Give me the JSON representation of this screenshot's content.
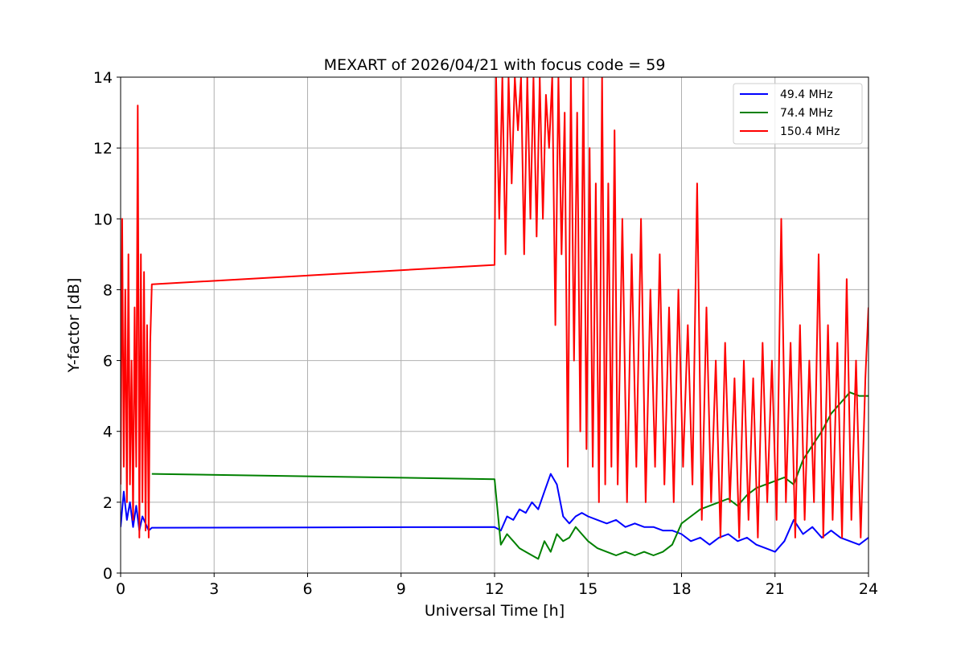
{
  "chart_data": {
    "type": "line",
    "title": "MEXART of 2026/04/21 with focus code = 59",
    "xlabel": "Universal Time [h]",
    "ylabel": "Y-factor [dB]",
    "xlim": [
      0,
      24
    ],
    "ylim": [
      0,
      14
    ],
    "xticks": [
      0,
      3,
      6,
      9,
      12,
      15,
      18,
      21,
      24
    ],
    "yticks": [
      0,
      2,
      4,
      6,
      8,
      10,
      12,
      14
    ],
    "grid": true,
    "legend_position": "top-right",
    "series": [
      {
        "name": "49.4 MHz",
        "color": "#0000ff",
        "x": [
          0.0,
          0.1,
          0.2,
          0.3,
          0.4,
          0.5,
          0.6,
          0.7,
          0.8,
          0.9,
          1.0,
          12.0,
          12.2,
          12.4,
          12.6,
          12.8,
          13.0,
          13.2,
          13.4,
          13.6,
          13.8,
          14.0,
          14.2,
          14.4,
          14.6,
          14.8,
          15.0,
          15.3,
          15.6,
          15.9,
          16.2,
          16.5,
          16.8,
          17.1,
          17.4,
          17.7,
          18.0,
          18.3,
          18.6,
          18.9,
          19.2,
          19.5,
          19.8,
          20.1,
          20.4,
          20.7,
          21.0,
          21.3,
          21.6,
          21.9,
          22.2,
          22.5,
          22.8,
          23.1,
          23.4,
          23.7,
          24.0
        ],
        "y": [
          1.3,
          2.3,
          1.5,
          2.0,
          1.3,
          1.9,
          1.2,
          1.6,
          1.4,
          1.2,
          1.28,
          1.3,
          1.2,
          1.6,
          1.5,
          1.8,
          1.7,
          2.0,
          1.8,
          2.3,
          2.8,
          2.5,
          1.6,
          1.4,
          1.6,
          1.7,
          1.6,
          1.5,
          1.4,
          1.5,
          1.3,
          1.4,
          1.3,
          1.3,
          1.2,
          1.2,
          1.1,
          0.9,
          1.0,
          0.8,
          1.0,
          1.1,
          0.9,
          1.0,
          0.8,
          0.7,
          0.6,
          0.9,
          1.5,
          1.1,
          1.3,
          1.0,
          1.2,
          1.0,
          0.9,
          0.8,
          1.0
        ]
      },
      {
        "name": "74.4 MHz",
        "color": "#008000",
        "x": [
          1.0,
          12.0,
          12.2,
          12.4,
          12.6,
          12.8,
          13.0,
          13.2,
          13.4,
          13.6,
          13.8,
          14.0,
          14.2,
          14.4,
          14.6,
          14.8,
          15.0,
          15.3,
          15.6,
          15.9,
          16.2,
          16.5,
          16.8,
          17.1,
          17.4,
          17.7,
          18.0,
          18.3,
          18.6,
          18.9,
          19.2,
          19.5,
          19.8,
          20.1,
          20.4,
          20.7,
          21.0,
          21.3,
          21.6,
          21.9,
          22.2,
          22.5,
          22.8,
          23.1,
          23.4,
          23.7,
          24.0
        ],
        "y": [
          2.8,
          2.65,
          0.8,
          1.1,
          0.9,
          0.7,
          0.6,
          0.5,
          0.4,
          0.9,
          0.6,
          1.1,
          0.9,
          1.0,
          1.3,
          1.1,
          0.9,
          0.7,
          0.6,
          0.5,
          0.6,
          0.5,
          0.6,
          0.5,
          0.6,
          0.8,
          1.4,
          1.6,
          1.8,
          1.9,
          2.0,
          2.1,
          1.9,
          2.2,
          2.4,
          2.5,
          2.6,
          2.7,
          2.5,
          3.2,
          3.6,
          4.0,
          4.5,
          4.8,
          5.1,
          5.0,
          5.0
        ]
      },
      {
        "name": "150.4 MHz",
        "color": "#ff0000",
        "x": [
          0.0,
          0.05,
          0.1,
          0.15,
          0.2,
          0.25,
          0.3,
          0.35,
          0.4,
          0.45,
          0.5,
          0.55,
          0.6,
          0.65,
          0.7,
          0.75,
          0.8,
          0.85,
          0.9,
          0.95,
          1.0,
          12.0,
          12.05,
          12.15,
          12.25,
          12.35,
          12.45,
          12.55,
          12.65,
          12.75,
          12.85,
          12.95,
          13.05,
          13.15,
          13.25,
          13.35,
          13.45,
          13.55,
          13.65,
          13.75,
          13.85,
          13.95,
          14.05,
          14.15,
          14.25,
          14.35,
          14.45,
          14.55,
          14.65,
          14.75,
          14.85,
          14.95,
          15.05,
          15.15,
          15.25,
          15.35,
          15.45,
          15.55,
          15.65,
          15.75,
          15.85,
          15.95,
          16.1,
          16.25,
          16.4,
          16.55,
          16.7,
          16.85,
          17.0,
          17.15,
          17.3,
          17.45,
          17.6,
          17.75,
          17.9,
          18.05,
          18.2,
          18.35,
          18.5,
          18.65,
          18.8,
          18.95,
          19.1,
          19.25,
          19.4,
          19.55,
          19.7,
          19.85,
          20.0,
          20.15,
          20.3,
          20.45,
          20.6,
          20.75,
          20.9,
          21.05,
          21.2,
          21.35,
          21.5,
          21.65,
          21.8,
          21.95,
          22.1,
          22.25,
          22.4,
          22.55,
          22.7,
          22.85,
          23.0,
          23.15,
          23.3,
          23.45,
          23.6,
          23.75,
          23.9,
          24.0
        ],
        "y": [
          2.5,
          10.0,
          3.0,
          8.0,
          2.0,
          9.0,
          2.5,
          6.0,
          1.5,
          7.5,
          3.0,
          13.2,
          1.0,
          9.0,
          2.0,
          8.5,
          1.2,
          7.0,
          1.0,
          6.5,
          8.15,
          8.7,
          14.0,
          10.0,
          14.0,
          9.0,
          14.0,
          11.0,
          14.0,
          12.5,
          14.0,
          9.0,
          14.0,
          10.0,
          14.0,
          9.5,
          14.0,
          10.0,
          13.5,
          12.0,
          14.0,
          7.0,
          14.0,
          9.0,
          13.0,
          3.0,
          14.0,
          6.0,
          13.0,
          4.0,
          14.0,
          3.5,
          12.0,
          3.0,
          11.0,
          2.0,
          14.0,
          2.5,
          11.0,
          3.0,
          12.5,
          2.5,
          10.0,
          2.0,
          9.0,
          3.0,
          10.0,
          2.0,
          8.0,
          3.0,
          9.0,
          2.5,
          7.5,
          2.0,
          8.0,
          3.0,
          7.0,
          2.5,
          11.0,
          1.5,
          7.5,
          2.0,
          6.0,
          1.0,
          6.5,
          2.0,
          5.5,
          1.0,
          6.0,
          1.5,
          5.5,
          1.0,
          6.5,
          2.0,
          6.0,
          1.5,
          10.0,
          2.0,
          6.5,
          1.0,
          7.0,
          1.5,
          6.0,
          2.0,
          9.0,
          1.0,
          7.0,
          1.5,
          6.5,
          1.0,
          8.3,
          1.5,
          6.0,
          1.0,
          5.5,
          7.5
        ]
      }
    ]
  }
}
